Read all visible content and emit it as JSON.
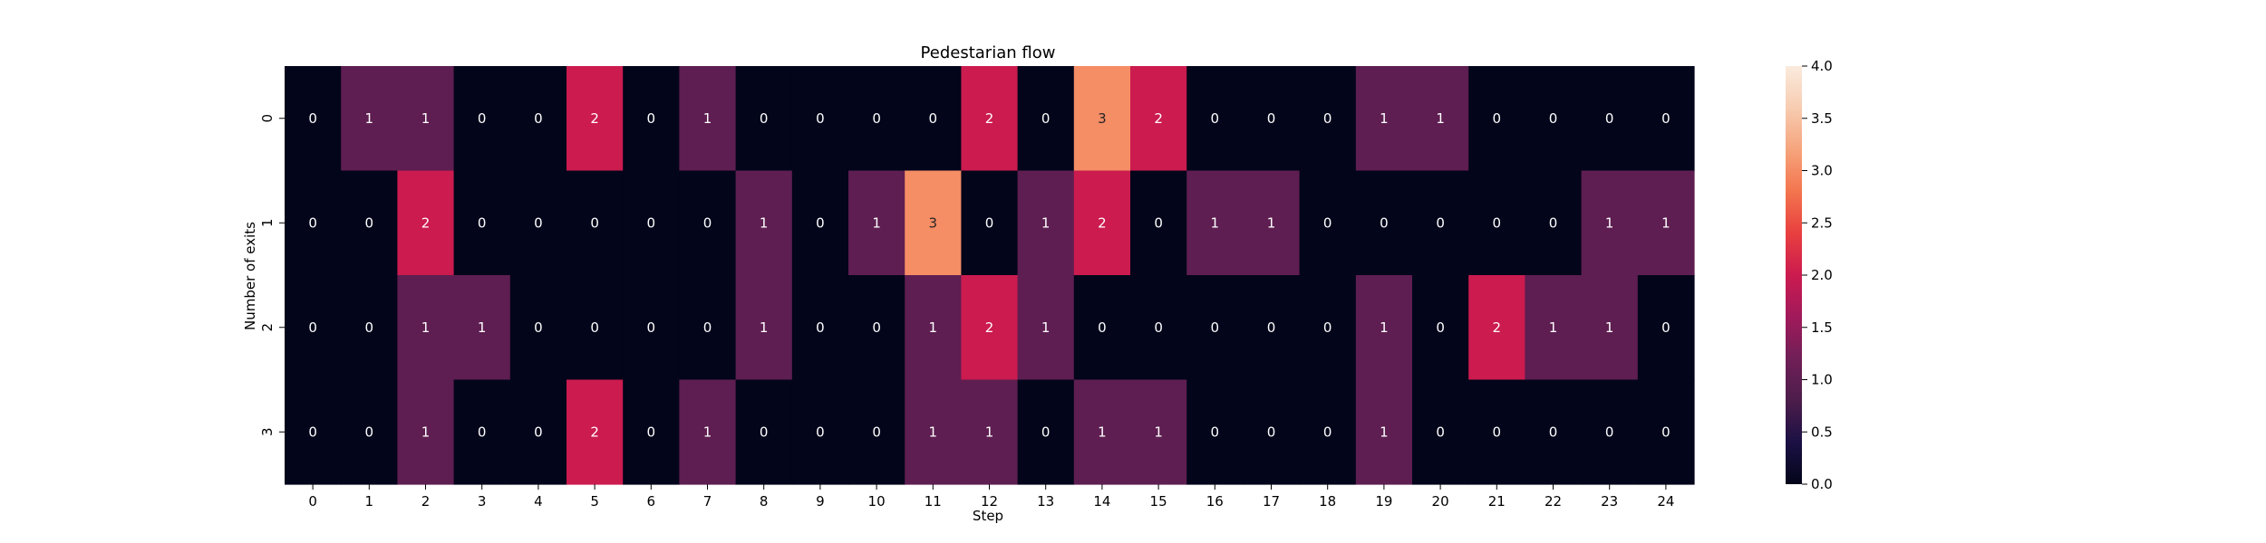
{
  "chart_data": {
    "type": "heatmap",
    "title": "Pedestarian flow",
    "xlabel": "Step",
    "ylabel": "Number of exits",
    "x_categories": [
      "0",
      "1",
      "2",
      "3",
      "4",
      "5",
      "6",
      "7",
      "8",
      "9",
      "10",
      "11",
      "12",
      "13",
      "14",
      "15",
      "16",
      "17",
      "18",
      "19",
      "20",
      "21",
      "22",
      "23",
      "24"
    ],
    "y_categories": [
      "0",
      "1",
      "2",
      "3"
    ],
    "values": [
      [
        0,
        1,
        1,
        0,
        0,
        2,
        0,
        1,
        0,
        0,
        0,
        0,
        2,
        0,
        3,
        2,
        0,
        0,
        0,
        1,
        1,
        0,
        0,
        0,
        0
      ],
      [
        0,
        0,
        2,
        0,
        0,
        0,
        0,
        0,
        1,
        0,
        1,
        3,
        0,
        1,
        2,
        0,
        1,
        1,
        0,
        0,
        0,
        0,
        0,
        1,
        1
      ],
      [
        0,
        0,
        1,
        1,
        0,
        0,
        0,
        0,
        1,
        0,
        0,
        1,
        2,
        1,
        0,
        0,
        0,
        0,
        0,
        1,
        0,
        2,
        1,
        1,
        0
      ],
      [
        0,
        0,
        1,
        0,
        0,
        2,
        0,
        1,
        0,
        0,
        0,
        1,
        1,
        0,
        1,
        1,
        0,
        0,
        0,
        1,
        0,
        0,
        0,
        0,
        0
      ]
    ],
    "annotated": true,
    "colorbar": {
      "min": 0,
      "max": 4,
      "ticks": [
        "0.0",
        "0.5",
        "1.0",
        "1.5",
        "2.0",
        "2.5",
        "3.0",
        "3.5",
        "4.0"
      ],
      "colormap": "rocket",
      "colors": [
        "#03051a",
        "#1b1044",
        "#4c1d4b",
        "#701f57",
        "#a11a5b",
        "#cb1b4f",
        "#e83f3f",
        "#f3754e",
        "#f6a47c",
        "#f7ccb1",
        "#faebdd"
      ]
    }
  }
}
